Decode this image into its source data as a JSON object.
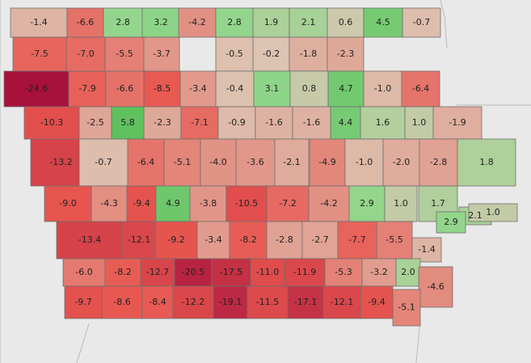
{
  "legend": "none",
  "color_scale": {
    "negative_max": "#a50f3b",
    "negative_mid": "#e8564f",
    "neutral": "#dcc6b4",
    "positive_mid": "#8fd68a",
    "positive_max": "#5cbf5a"
  },
  "counties": [
    {
      "v": -1.4
    },
    {
      "v": -6.6
    },
    {
      "v": 2.8
    },
    {
      "v": 3.2
    },
    {
      "v": -4.2
    },
    {
      "v": 2.8
    },
    {
      "v": 1.9
    },
    {
      "v": 2.1
    },
    {
      "v": 0.6
    },
    {
      "v": 4.5
    },
    {
      "v": -0.7
    },
    {
      "v": -7.5
    },
    {
      "v": -7.0
    },
    {
      "v": -5.5
    },
    {
      "v": -3.7
    },
    {
      "v": -0.5
    },
    {
      "v": -0.2
    },
    {
      "v": -1.8
    },
    {
      "v": -2.3
    },
    {
      "v": -24.6
    },
    {
      "v": -7.9
    },
    {
      "v": -6.6
    },
    {
      "v": -8.5
    },
    {
      "v": -3.4
    },
    {
      "v": -0.4
    },
    {
      "v": 3.1
    },
    {
      "v": 0.8
    },
    {
      "v": 4.7
    },
    {
      "v": -1.0
    },
    {
      "v": -6.4
    },
    {
      "v": -10.3
    },
    {
      "v": -2.5
    },
    {
      "v": 5.8
    },
    {
      "v": -2.3
    },
    {
      "v": -7.1
    },
    {
      "v": -0.9
    },
    {
      "v": -1.6
    },
    {
      "v": -1.6
    },
    {
      "v": 4.4
    },
    {
      "v": 1.6
    },
    {
      "v": 1.0
    },
    {
      "v": -1.9
    },
    {
      "v": -13.2
    },
    {
      "v": -0.7
    },
    {
      "v": -6.4
    },
    {
      "v": -5.1
    },
    {
      "v": -4.0
    },
    {
      "v": -3.6
    },
    {
      "v": -2.1
    },
    {
      "v": -4.9
    },
    {
      "v": -1.0
    },
    {
      "v": -2.0
    },
    {
      "v": -2.8
    },
    {
      "v": 1.8
    },
    {
      "v": -9.0
    },
    {
      "v": -4.3
    },
    {
      "v": -9.4
    },
    {
      "v": 4.9
    },
    {
      "v": -3.8
    },
    {
      "v": -10.5
    },
    {
      "v": -7.2
    },
    {
      "v": -4.2
    },
    {
      "v": 2.9
    },
    {
      "v": 1.0
    },
    {
      "v": 1.7
    },
    {
      "v": 2.1
    },
    {
      "v": 1.0
    },
    {
      "v": -13.4
    },
    {
      "v": -12.1
    },
    {
      "v": -9.2
    },
    {
      "v": -3.4
    },
    {
      "v": -8.2
    },
    {
      "v": -2.8
    },
    {
      "v": -2.7
    },
    {
      "v": -7.7
    },
    {
      "v": -5.5
    },
    {
      "v": 2.9
    },
    {
      "v": -1.4
    },
    {
      "v": -6.0
    },
    {
      "v": -8.2
    },
    {
      "v": -12.7
    },
    {
      "v": -20.5
    },
    {
      "v": -17.5
    },
    {
      "v": -11.0
    },
    {
      "v": -11.9
    },
    {
      "v": -5.3
    },
    {
      "v": -3.2
    },
    {
      "v": 2.0
    },
    {
      "v": -4.6
    },
    {
      "v": -9.7
    },
    {
      "v": -8.6
    },
    {
      "v": -8.4
    },
    {
      "v": -12.2
    },
    {
      "v": -19.1
    },
    {
      "v": -11.5
    },
    {
      "v": -17.1
    },
    {
      "v": -12.1
    },
    {
      "v": -9.4
    },
    {
      "v": -5.1
    }
  ]
}
